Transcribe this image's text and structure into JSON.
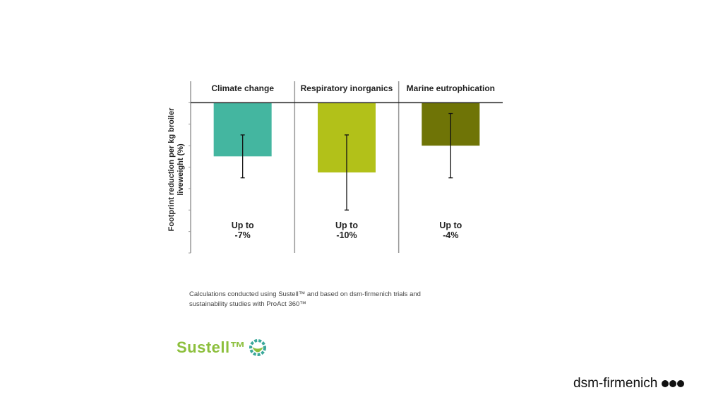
{
  "chart_data": {
    "type": "bar",
    "title": "",
    "ylabel": "Footprint reduction per kg broiler liveweight (%)",
    "ylabel_lines": [
      "Footprint reduction per kg broiler",
      "liveweight (%)"
    ],
    "xlabel": "",
    "categories": [
      "Climate change",
      "Respiratory inorganics",
      "Marine eutrophication"
    ],
    "values": [
      -2.5,
      -3.25,
      -2.0
    ],
    "error_low": [
      -3.5,
      -5.0,
      -3.5
    ],
    "error_high": [
      -1.5,
      -1.5,
      -0.5
    ],
    "value_labels": [
      [
        "Up to",
        "-7%"
      ],
      [
        "Up to",
        "-10%"
      ],
      [
        "Up to",
        "-4%"
      ]
    ],
    "colors": [
      "#44b6a0",
      "#b2c119",
      "#6f7406"
    ],
    "ylim": [
      -7,
      1
    ],
    "yticks": [
      0,
      -1,
      -2,
      -3,
      -4,
      -5,
      -6,
      -7
    ],
    "ytick_labels_shown": false,
    "grid": false
  },
  "footnote": {
    "line1": "Calculations conducted using Sustell™ and based on dsm-firmenich trials and",
    "line2": "sustainability studies with ProAct 360™"
  },
  "logos": {
    "sustell": "Sustell™",
    "brand": "dsm-firmenich"
  }
}
